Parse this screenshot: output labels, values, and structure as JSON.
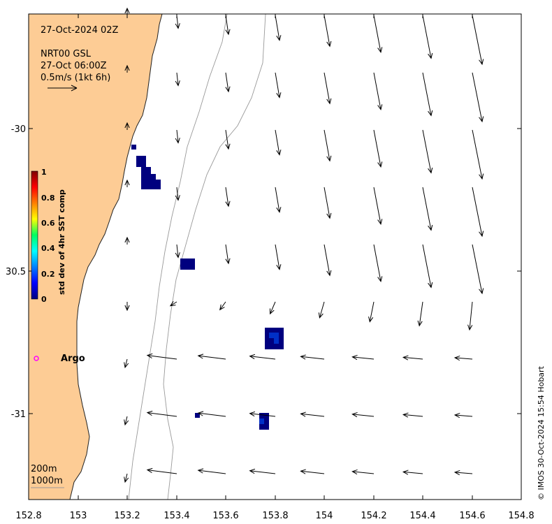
{
  "map": {
    "timestamp": "27-Oct-2024 02Z",
    "source_line1": "NRT00 GSL",
    "source_line2": "27-Oct 06:00Z",
    "scale_arrow_label": "0.5m/s (1kt 6h)",
    "lon_ticks": [
      "152.8",
      "153",
      "153.2",
      "153.4",
      "153.6",
      "153.8",
      "154",
      "154.2",
      "154.4",
      "154.6",
      "154.8"
    ],
    "lat_ticks": [
      "-30",
      "30.5",
      "-31"
    ],
    "isobath_labels": [
      "200m",
      "1000m"
    ],
    "argo_label": "Argo",
    "credit": "© IMOS 30-Oct-2024 15:54 Hobart",
    "colors": {
      "land": "#fdcc95",
      "argo_marker": "#ff00ff",
      "isobath": "#999999"
    }
  },
  "colorbar": {
    "title": "std dev of 4hr SST comp",
    "ticks": [
      "1",
      "0.8",
      "0.6",
      "0.4",
      "0.2",
      "0"
    ],
    "colormap": "jet"
  }
}
